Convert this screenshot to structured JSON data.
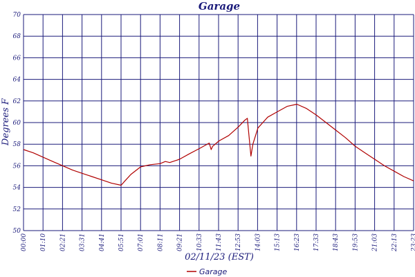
{
  "chart_data": {
    "type": "line",
    "title": "Garage",
    "xlabel": "02/11/23 (EST)",
    "ylabel": "Degrees F",
    "ylim": [
      50,
      70
    ],
    "y_ticks": [
      50,
      52,
      54,
      56,
      58,
      60,
      62,
      64,
      66,
      68,
      70
    ],
    "x_tick_labels": [
      "00:00",
      "01:10",
      "02:21",
      "03:31",
      "04:41",
      "05:51",
      "07:01",
      "08:11",
      "09:21",
      "10:33",
      "11:43",
      "12:53",
      "14:03",
      "15:13",
      "16:23",
      "17:33",
      "18:43",
      "19:53",
      "21:03",
      "22:13",
      "23:23"
    ],
    "grid": true,
    "legend_position": "bottom-center",
    "colors": {
      "series": "#b00000",
      "grid": "#1a1a7a",
      "text": "#1a1a7a"
    },
    "series": [
      {
        "name": "Garage",
        "x": [
          "00:00",
          "00:35",
          "01:10",
          "01:45",
          "02:21",
          "02:56",
          "03:31",
          "04:06",
          "04:41",
          "05:16",
          "05:51",
          "06:05",
          "06:26",
          "07:01",
          "07:36",
          "08:11",
          "08:30",
          "08:46",
          "09:21",
          "09:56",
          "10:33",
          "11:08",
          "11:15",
          "11:20",
          "11:43",
          "12:18",
          "12:53",
          "13:15",
          "13:25",
          "13:32",
          "13:38",
          "13:45",
          "14:03",
          "14:38",
          "15:13",
          "15:48",
          "16:23",
          "16:58",
          "17:33",
          "18:08",
          "18:43",
          "19:18",
          "19:53",
          "20:28",
          "21:03",
          "21:38",
          "22:13",
          "22:48",
          "23:23"
        ],
        "values": [
          57.5,
          57.2,
          56.8,
          56.4,
          56.0,
          55.6,
          55.3,
          55.0,
          54.7,
          54.4,
          54.2,
          54.6,
          55.2,
          55.9,
          56.1,
          56.2,
          56.4,
          56.3,
          56.6,
          57.1,
          57.6,
          58.1,
          57.5,
          57.8,
          58.3,
          58.8,
          59.6,
          60.2,
          60.4,
          58.5,
          56.9,
          58.0,
          59.5,
          60.5,
          61.0,
          61.5,
          61.7,
          61.3,
          60.7,
          60.0,
          59.3,
          58.6,
          57.8,
          57.2,
          56.6,
          56.0,
          55.5,
          55.0,
          54.6
        ]
      }
    ]
  }
}
